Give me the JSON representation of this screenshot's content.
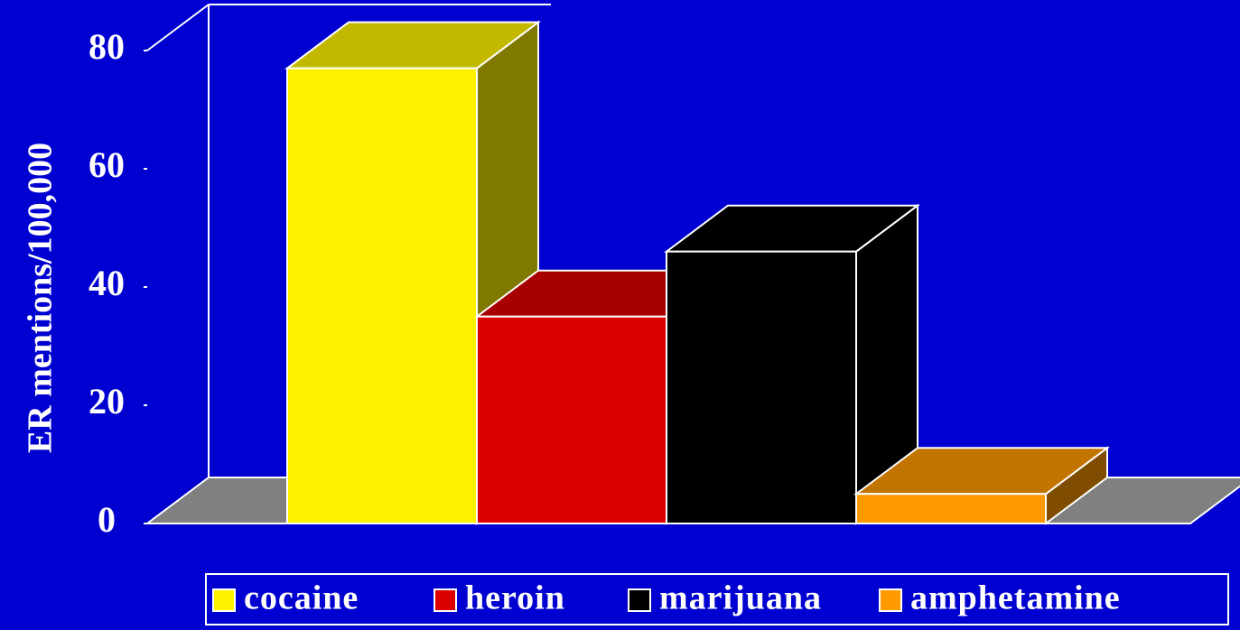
{
  "chart_data": {
    "type": "bar3d",
    "categories": [
      "cocaine",
      "heroin",
      "marijuana",
      "amphetamine"
    ],
    "values": [
      77,
      35,
      46,
      5
    ],
    "colors": [
      "#fff200",
      "#dd0000",
      "#000000",
      "#ff9900"
    ],
    "ylabel": "ER mentions/100,000",
    "ylim": [
      0,
      80
    ],
    "yticks": [
      0,
      20,
      40,
      60,
      80
    ],
    "grid": false,
    "legend": "bottom"
  }
}
